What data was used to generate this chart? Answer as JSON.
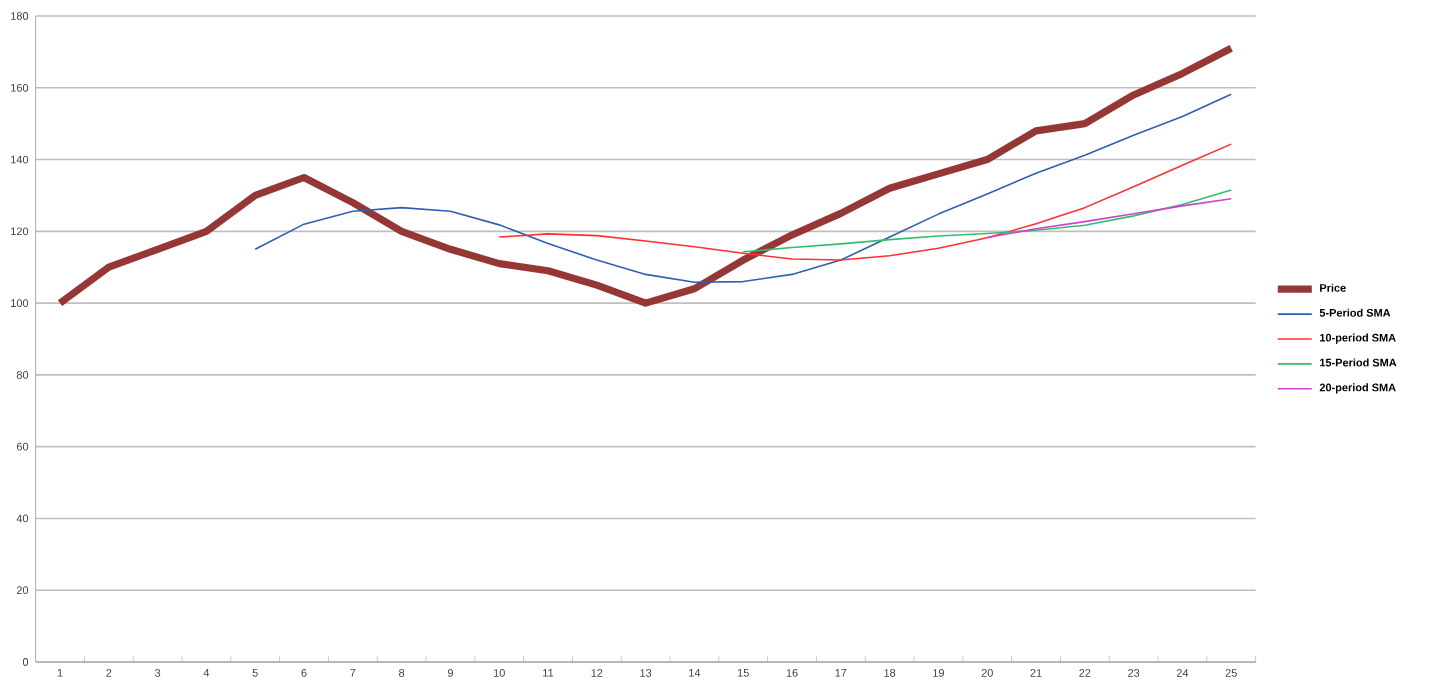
{
  "chart_data": {
    "type": "line",
    "categories": [
      "1",
      "2",
      "3",
      "4",
      "5",
      "6",
      "7",
      "8",
      "9",
      "10",
      "11",
      "12",
      "13",
      "14",
      "15",
      "16",
      "17",
      "18",
      "19",
      "20",
      "21",
      "22",
      "23",
      "24",
      "25"
    ],
    "series": [
      {
        "name": "Price",
        "color": "#953735",
        "values": [
          100,
          110,
          115,
          120,
          130,
          135,
          128,
          120,
          115,
          111,
          109,
          105,
          100,
          104,
          112,
          119,
          125,
          132,
          136,
          140,
          148,
          150,
          158,
          164,
          171
        ]
      },
      {
        "name": "5-Period SMA",
        "color": "#2f5fb3",
        "values": [
          null,
          null,
          null,
          null,
          115,
          122,
          125.6,
          126.6,
          125.6,
          121.8,
          116.6,
          112,
          108,
          105.8,
          106,
          108,
          112,
          118.4,
          124.8,
          130.4,
          136.2,
          141.2,
          146.8,
          152,
          158.2
        ]
      },
      {
        "name": "10-period SMA",
        "color": "#ff3030",
        "values": [
          null,
          null,
          null,
          null,
          null,
          null,
          null,
          null,
          null,
          118.4,
          119.3,
          118.8,
          117.3,
          115.7,
          113.9,
          112.3,
          112,
          113.2,
          115.3,
          118.2,
          122.1,
          126.6,
          132.4,
          138.4,
          144.3
        ]
      },
      {
        "name": "15-Period SMA",
        "color": "#2fbf71",
        "values": [
          null,
          null,
          null,
          null,
          null,
          null,
          null,
          null,
          null,
          null,
          null,
          null,
          null,
          null,
          114.3,
          115.5,
          116.5,
          117.7,
          118.7,
          119.4,
          120.3,
          121.7,
          124.3,
          127.5,
          131.5
        ]
      },
      {
        "name": "20-period SMA",
        "color": "#d040d0",
        "values": [
          null,
          null,
          null,
          null,
          null,
          null,
          null,
          null,
          null,
          null,
          null,
          null,
          null,
          null,
          null,
          null,
          null,
          null,
          null,
          118.3,
          120.7,
          122.7,
          124.9,
          127.1,
          129.1
        ]
      }
    ],
    "ylim": [
      0,
      180
    ],
    "yticks": [
      0,
      20,
      40,
      60,
      80,
      100,
      120,
      140,
      160,
      180
    ],
    "grid": "y",
    "legend": "right",
    "marker": "none",
    "line_style": "solid"
  }
}
